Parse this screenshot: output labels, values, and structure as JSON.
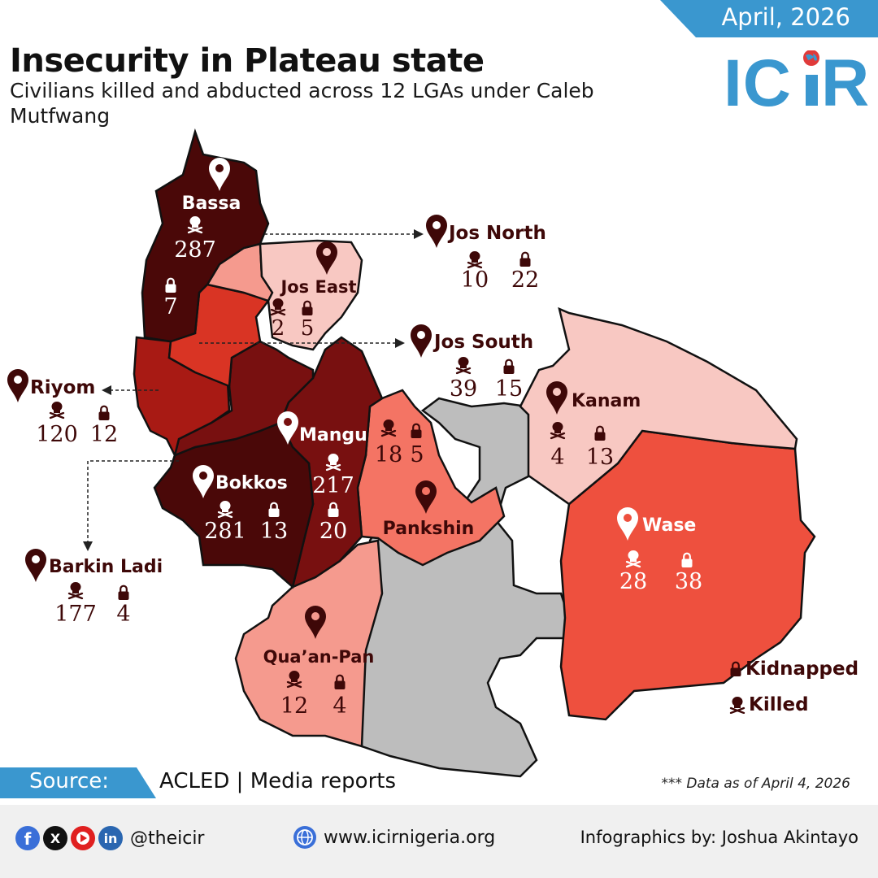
{
  "header": {
    "date": "April, 2026",
    "title": "Insecurity in Plateau state",
    "subtitle": "Civilians killed and abducted across 12 LGAs under Caleb Mutfwang",
    "logo_text": "ICIR"
  },
  "colors": {
    "brand_blue": "#3a97cf",
    "dark_maroon": "#3e0808",
    "level_1": "#4a0808",
    "level_2": "#781010",
    "level_3": "#a81a14",
    "level_4": "#d93424",
    "level_5": "#ee503e",
    "level_6": "#f47464",
    "level_7": "#f59a8e",
    "level_8": "#f8c8c2",
    "no_data": "#bdbdbd"
  },
  "lgas": [
    {
      "name": "Bassa",
      "killed": "287",
      "kidnapped": "7"
    },
    {
      "name": "Jos North",
      "killed": "10",
      "kidnapped": "22"
    },
    {
      "name": "Jos East",
      "killed": "2",
      "kidnapped": "5"
    },
    {
      "name": "Jos South",
      "killed": "39",
      "kidnapped": "15"
    },
    {
      "name": "Riyom",
      "killed": "120",
      "kidnapped": "12"
    },
    {
      "name": "Mangu",
      "killed": "217",
      "kidnapped": "20"
    },
    {
      "name": "Bokkos",
      "killed": "281",
      "kidnapped": "13"
    },
    {
      "name": "Barkin Ladi",
      "killed": "177",
      "kidnapped": "4"
    },
    {
      "name": "Pankshin",
      "killed": "18",
      "kidnapped": "5"
    },
    {
      "name": "Kanam",
      "killed": "4",
      "kidnapped": "13"
    },
    {
      "name": "Wase",
      "killed": "28",
      "kidnapped": "38"
    },
    {
      "name": "Qua’an-Pan",
      "killed": "12",
      "kidnapped": "4"
    }
  ],
  "legend": {
    "kidnapped": "Kidnapped",
    "killed": "Killed"
  },
  "source": {
    "label": "Source:",
    "text": "ACLED | Media reports"
  },
  "note": "*** Data as of April 4, 2026",
  "footer": {
    "handle": "@theicir",
    "website": "www.icirnigeria.org",
    "credit": "Infographics by: Joshua Akintayo",
    "social_icons": [
      "facebook-icon",
      "x-icon",
      "youtube-icon",
      "linkedin-icon"
    ]
  }
}
